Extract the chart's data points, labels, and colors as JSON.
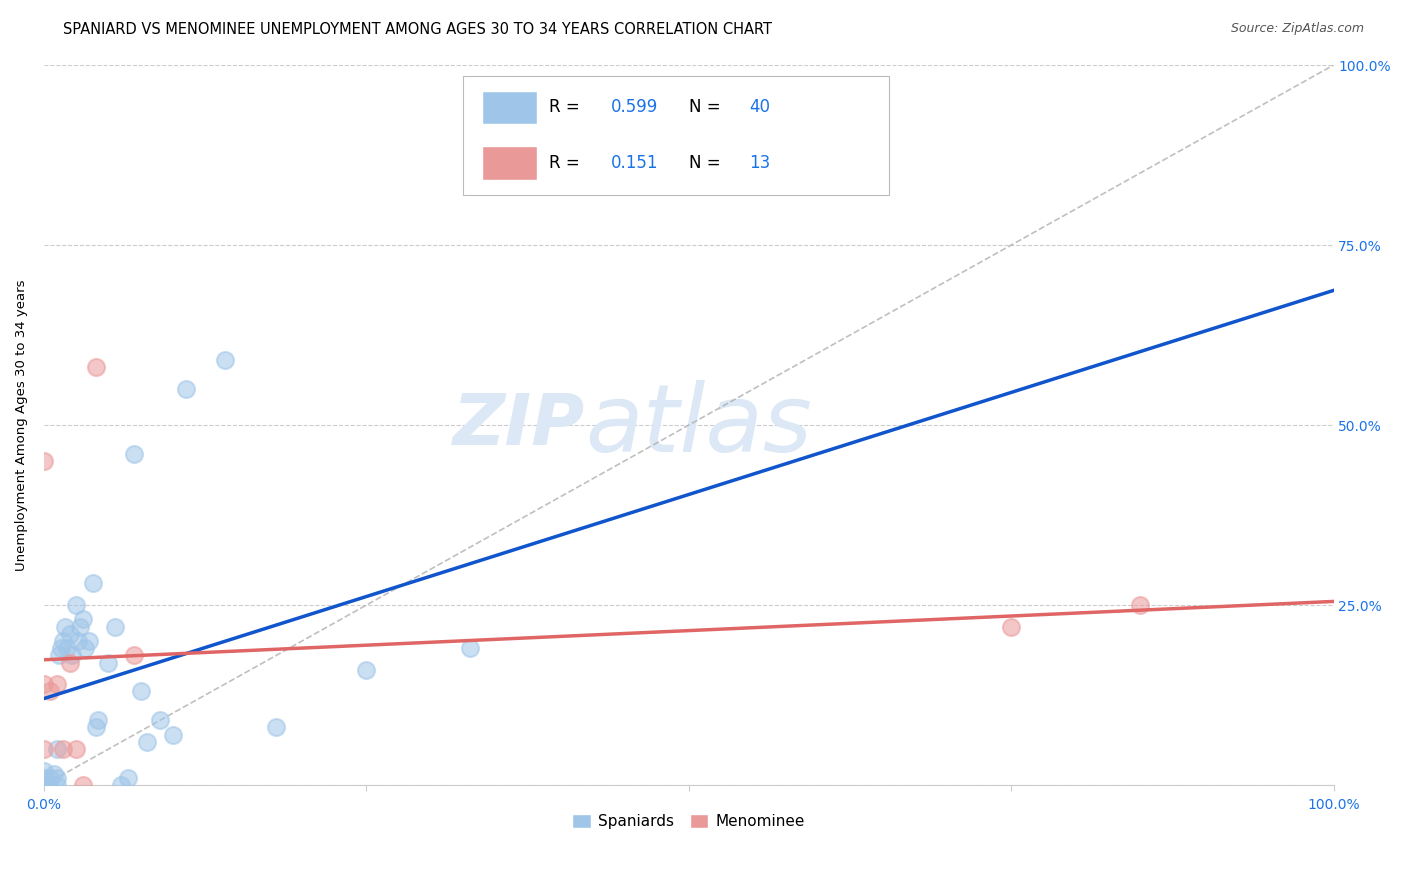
{
  "title": "SPANIARD VS MENOMINEE UNEMPLOYMENT AMONG AGES 30 TO 34 YEARS CORRELATION CHART",
  "source": "Source: ZipAtlas.com",
  "ylabel": "Unemployment Among Ages 30 to 34 years",
  "xlim": [
    0,
    1.0
  ],
  "ylim": [
    0,
    1.0
  ],
  "xticks": [
    0.0,
    0.25,
    0.5,
    0.75,
    1.0
  ],
  "xtick_labels": [
    "0.0%",
    "",
    "",
    "",
    "100.0%"
  ],
  "yticks": [
    0.0,
    0.25,
    0.5,
    0.75,
    1.0
  ],
  "right_ytick_labels": [
    "",
    "25.0%",
    "50.0%",
    "75.0%",
    "100.0%"
  ],
  "spaniards_color": "#9fc5e8",
  "menominee_color": "#ea9999",
  "regression_spaniards_color": "#1155cc",
  "regression_menominee_color": "#e06666",
  "diagonal_color": "#b0b0b0",
  "spaniards_x": [
    0.0,
    0.0,
    0.0,
    0.0,
    0.004,
    0.005,
    0.008,
    0.01,
    0.01,
    0.01,
    0.012,
    0.013,
    0.015,
    0.016,
    0.018,
    0.02,
    0.022,
    0.025,
    0.026,
    0.028,
    0.03,
    0.032,
    0.035,
    0.038,
    0.04,
    0.042,
    0.05,
    0.055,
    0.06,
    0.065,
    0.07,
    0.075,
    0.08,
    0.09,
    0.1,
    0.11,
    0.14,
    0.18,
    0.25,
    0.33
  ],
  "spaniards_y": [
    0.0,
    0.0,
    0.01,
    0.02,
    0.0,
    0.01,
    0.015,
    0.0,
    0.01,
    0.05,
    0.18,
    0.19,
    0.2,
    0.22,
    0.19,
    0.21,
    0.18,
    0.25,
    0.2,
    0.22,
    0.23,
    0.19,
    0.2,
    0.28,
    0.08,
    0.09,
    0.17,
    0.22,
    0.0,
    0.01,
    0.46,
    0.13,
    0.06,
    0.09,
    0.07,
    0.55,
    0.59,
    0.08,
    0.16,
    0.19
  ],
  "menominee_x": [
    0.0,
    0.0,
    0.0,
    0.005,
    0.01,
    0.015,
    0.02,
    0.025,
    0.03,
    0.04,
    0.07,
    0.75,
    0.85
  ],
  "menominee_y": [
    0.45,
    0.14,
    0.05,
    0.13,
    0.14,
    0.05,
    0.17,
    0.05,
    0.0,
    0.58,
    0.18,
    0.22,
    0.25
  ],
  "background_color": "#ffffff",
  "grid_color": "#cccccc",
  "title_fontsize": 10.5,
  "axis_label_fontsize": 9.5,
  "tick_fontsize": 10,
  "legend_fontsize": 11,
  "source_fontsize": 9,
  "watermark_text": "ZIPatlas",
  "watermark_color": "#dce8f5",
  "watermark_fontsize": 52
}
